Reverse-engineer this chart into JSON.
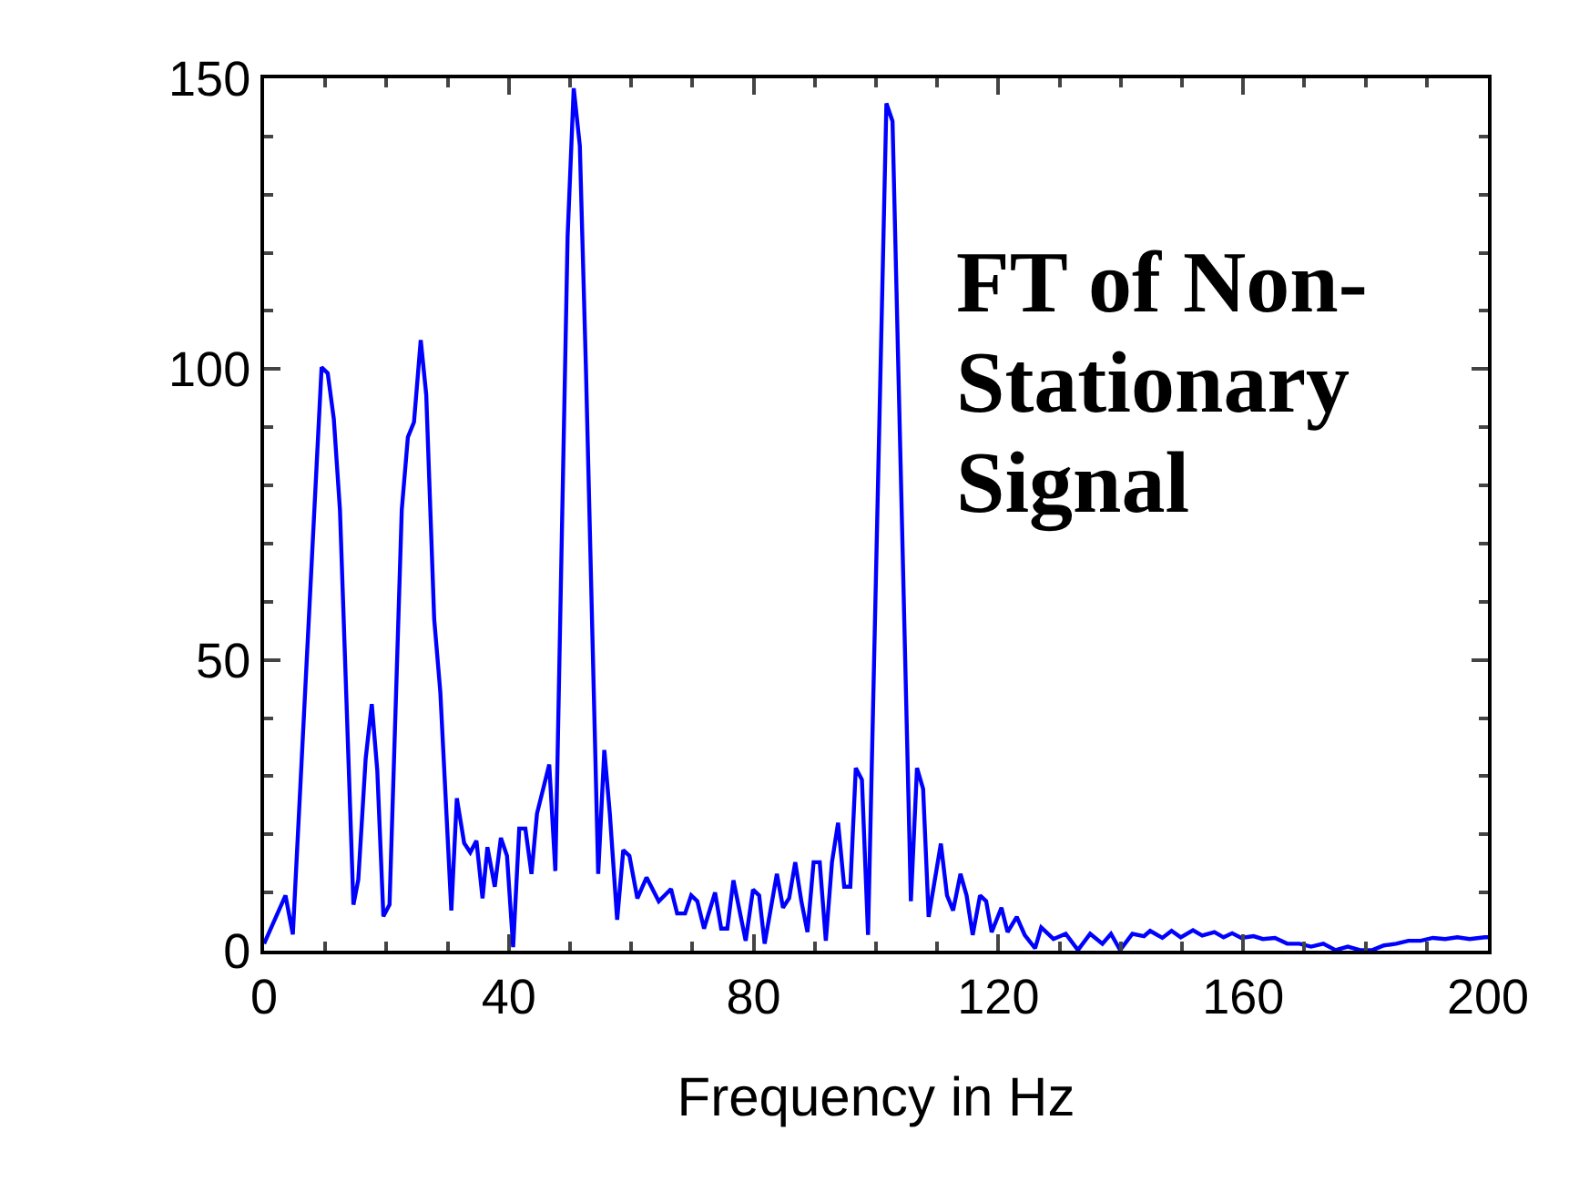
{
  "chart_data": {
    "type": "line",
    "title": "FT of Non-Stationary Signal",
    "xlabel": "Frequency in Hz",
    "xlim": [
      0,
      200
    ],
    "xticks": [
      0,
      40,
      80,
      120,
      160,
      200
    ],
    "ylim": [
      0,
      150
    ],
    "yticks": [
      0,
      50,
      100,
      150
    ],
    "grid": false,
    "marker": "none",
    "line_style": "solid",
    "series": [
      {
        "color": "#0000ff",
        "x": [
          0,
          3.5,
          4.7,
          9.4,
          10.4,
          11.4,
          12.4,
          14.6,
          15.4,
          16.6,
          17.6,
          18.5,
          19.5,
          20.5,
          22.5,
          23.5,
          24.5,
          25.6,
          26.5,
          27.8,
          28.8,
          30.6,
          31.5,
          32.7,
          33.7,
          34.7,
          35.7,
          36.5,
          37.7,
          38.7,
          39.7,
          40.7,
          41.7,
          42.7,
          43.7,
          44.6,
          45.6,
          46.6,
          47.6,
          49.6,
          50.6,
          51.6,
          52.6,
          54.6,
          55.6,
          56.5,
          57.7,
          58.7,
          59.7,
          61,
          62.5,
          64.5,
          66.5,
          67.5,
          68.8,
          69.8,
          70.8,
          71.9,
          73.7,
          74.7,
          75.7,
          76.7,
          77.7,
          78.7,
          79.9,
          80.9,
          81.8,
          83.8,
          84.8,
          85.8,
          86.8,
          87.8,
          88.8,
          89.8,
          90.8,
          91.8,
          92.8,
          93.8,
          94.8,
          95.8,
          96.7,
          97.7,
          98.7,
          101.7,
          102.7,
          105.7,
          106.7,
          107.7,
          108.6,
          110.6,
          111.6,
          112.6,
          113.8,
          114.8,
          115.8,
          117,
          118,
          118.9,
          120.5,
          121.5,
          123,
          124.3,
          126,
          127,
          129,
          131,
          133,
          135,
          137,
          138.4,
          139.9,
          141.9,
          143.8,
          144.8,
          146.8,
          148.3,
          149.8,
          151.8,
          153.3,
          155.3,
          156.8,
          158.2,
          159.7,
          161.7,
          163.2,
          165.2,
          167.2,
          169.2,
          171.1,
          173.1,
          175.1,
          177.1,
          179.1,
          181.1,
          183,
          185,
          187,
          189,
          191,
          193,
          195,
          197,
          199.5,
          200
        ],
        "values": [
          1.2,
          9.5,
          2.8,
          100.3,
          99.3,
          91.4,
          75.8,
          7.9,
          12.2,
          33,
          42.4,
          31,
          5.9,
          7.9,
          75.8,
          88.3,
          90.9,
          105,
          95.6,
          57,
          44.5,
          6.9,
          26.2,
          18.5,
          16.9,
          18.9,
          9,
          17.8,
          11,
          19.4,
          16.3,
          0.6,
          21,
          21,
          13.2,
          23.6,
          27.8,
          32,
          13.7,
          122.8,
          148.3,
          138.4,
          99.9,
          13.2,
          34.5,
          23.6,
          5.3,
          17.3,
          16.3,
          9,
          12.6,
          8.5,
          10.6,
          6.4,
          6.4,
          9.5,
          8.5,
          3.8,
          10,
          3.8,
          3.8,
          12.1,
          6.9,
          1.7,
          10.5,
          9.5,
          1.2,
          13.2,
          7.4,
          9,
          15.2,
          8.5,
          3.2,
          15.2,
          15.2,
          1.7,
          15.2,
          22,
          11,
          11,
          31.4,
          29.4,
          2.7,
          145.7,
          142.6,
          8.5,
          31.4,
          27.8,
          5.8,
          18.4,
          9.5,
          6.9,
          13.2,
          9.5,
          2.7,
          9.5,
          8.5,
          3.2,
          7.4,
          3.2,
          5.8,
          2.7,
          0.4,
          4,
          2,
          2.9,
          0.1,
          2.9,
          1.2,
          2.9,
          0.1,
          2.9,
          2.5,
          3.4,
          2.2,
          3.4,
          2.3,
          3.5,
          2.6,
          3.2,
          2.3,
          3,
          2.2,
          2.5,
          2,
          2.2,
          1.2,
          1.2,
          0.7,
          1.2,
          0.1,
          0.7,
          0.1,
          0.1,
          0.9,
          1.2,
          1.7,
          1.7,
          2.2,
          2,
          2.3,
          2,
          2.3,
          2.3
        ]
      }
    ]
  }
}
